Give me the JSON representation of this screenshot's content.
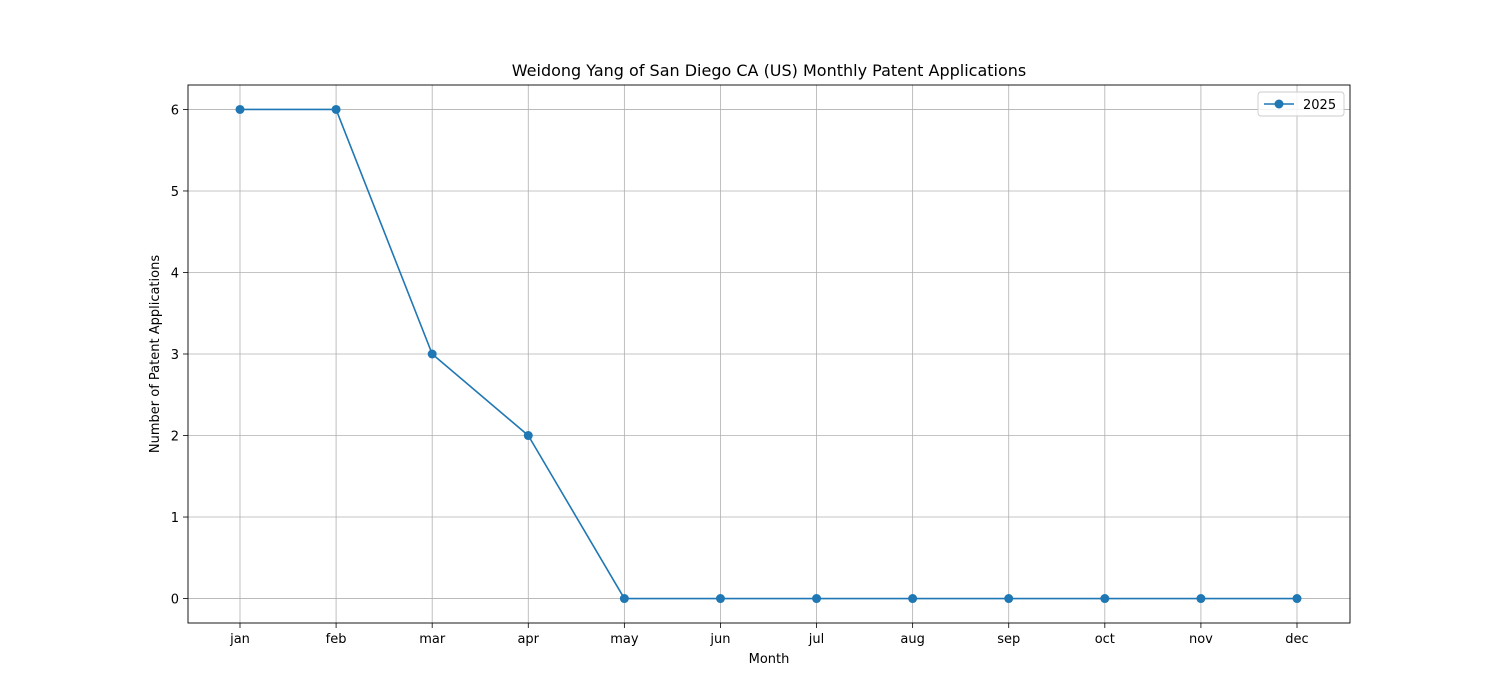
{
  "chart_data": {
    "type": "line",
    "title": "Weidong Yang of San Diego CA (US) Monthly Patent Applications",
    "xlabel": "Month",
    "ylabel": "Number of Patent Applications",
    "categories": [
      "jan",
      "feb",
      "mar",
      "apr",
      "may",
      "jun",
      "jul",
      "aug",
      "sep",
      "oct",
      "nov",
      "dec"
    ],
    "yticks": [
      "0",
      "1",
      "2",
      "3",
      "4",
      "5",
      "6"
    ],
    "ylim": [
      -0.3,
      6.3
    ],
    "grid": true,
    "legend_position": "top-right",
    "series": [
      {
        "name": "2025",
        "color": "#1f77b4",
        "marker": "circle",
        "values": [
          6,
          6,
          3,
          2,
          0,
          0,
          0,
          0,
          0,
          0,
          0,
          0
        ]
      }
    ]
  }
}
